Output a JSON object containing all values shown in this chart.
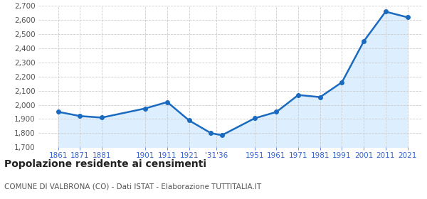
{
  "years": [
    1861,
    1871,
    1881,
    1901,
    1911,
    1921,
    1931,
    1936,
    1951,
    1961,
    1971,
    1981,
    1991,
    2001,
    2011,
    2021
  ],
  "population": [
    1951,
    1921,
    1910,
    1975,
    2020,
    1890,
    1800,
    1785,
    1905,
    1950,
    2070,
    2055,
    2160,
    2450,
    2660,
    2620
  ],
  "line_color": "#1a6abf",
  "fill_color": "#ddeeff",
  "marker_color": "#1a6abf",
  "bg_color": "#ffffff",
  "grid_color": "#cccccc",
  "ylim": [
    1700,
    2700
  ],
  "yticks": [
    1700,
    1800,
    1900,
    2000,
    2100,
    2200,
    2300,
    2400,
    2500,
    2600,
    2700
  ],
  "title": "Popolazione residente ai censimenti",
  "subtitle": "COMUNE DI VALBRONA (CO) - Dati ISTAT - Elaborazione TUTTITALIA.IT",
  "title_fontsize": 10,
  "subtitle_fontsize": 7.5,
  "tick_color": "#3366cc",
  "tick_fontsize": 7.5,
  "ytick_color": "#555555"
}
